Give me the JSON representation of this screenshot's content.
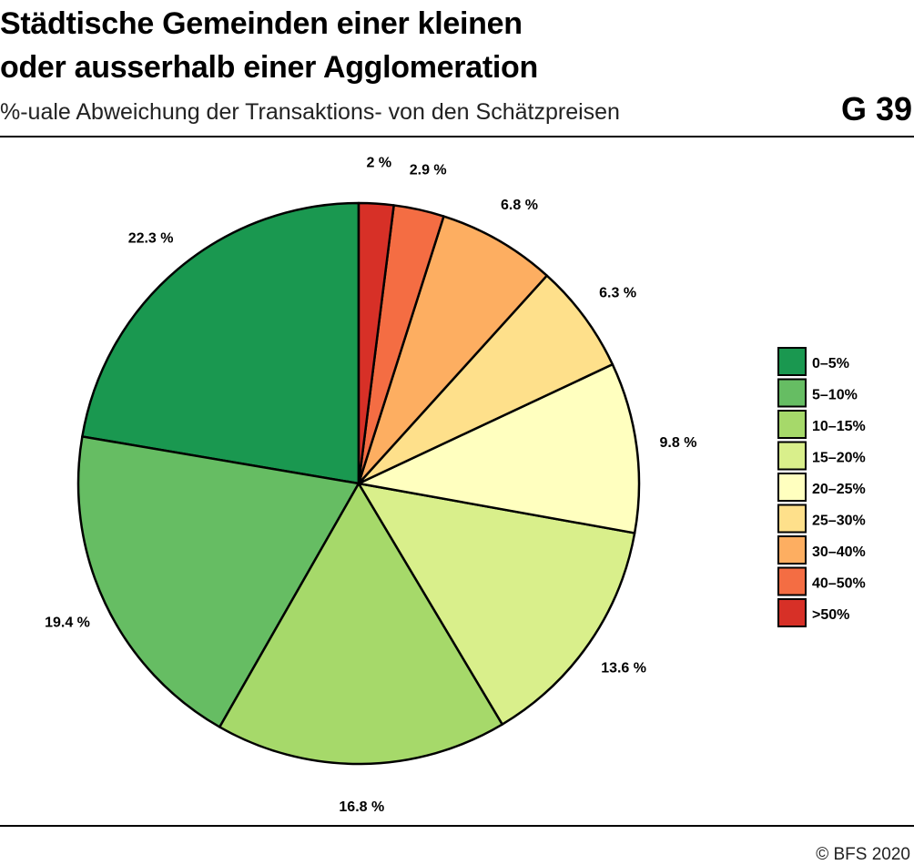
{
  "header": {
    "title_line1": "Städtische Gemeinden einer kleinen",
    "title_line2": "oder ausserhalb einer Agglomeration",
    "subtitle": "%-uale Abweichung der Transaktions- von den Schätzpreisen",
    "graphic_number": "G 39"
  },
  "footer": {
    "source": "© BFS 2020"
  },
  "chart_data": {
    "type": "pie",
    "title": "Städtische Gemeinden einer kleinen oder ausserhalb einer Agglomeration",
    "subtitle": "%-uale Abweichung der Transaktions- von den Schätzpreisen",
    "legend_position": "right",
    "direction": "counterclockwise from top",
    "slices": [
      {
        "category": "0–5%",
        "value": 22.3,
        "label": "22.3 %",
        "color": "#1a9850"
      },
      {
        "category": "5–10%",
        "value": 19.4,
        "label": "19.4 %",
        "color": "#66bd63"
      },
      {
        "category": "10–15%",
        "value": 16.8,
        "label": "16.8 %",
        "color": "#a6d96a"
      },
      {
        "category": "15–20%",
        "value": 13.6,
        "label": "13.6 %",
        "color": "#d9ef8b"
      },
      {
        "category": "20–25%",
        "value": 9.8,
        "label": "9.8 %",
        "color": "#ffffbf"
      },
      {
        "category": "25–30%",
        "value": 6.3,
        "label": "6.3 %",
        "color": "#fee08b"
      },
      {
        "category": "30–40%",
        "value": 6.8,
        "label": "6.8 %",
        "color": "#fdae61"
      },
      {
        "category": "40–50%",
        "value": 2.9,
        "label": "2.9 %",
        "color": "#f46d43"
      },
      {
        "category": ">50%",
        "value": 2.0,
        "label": "2 %",
        "color": "#d73027"
      }
    ]
  }
}
